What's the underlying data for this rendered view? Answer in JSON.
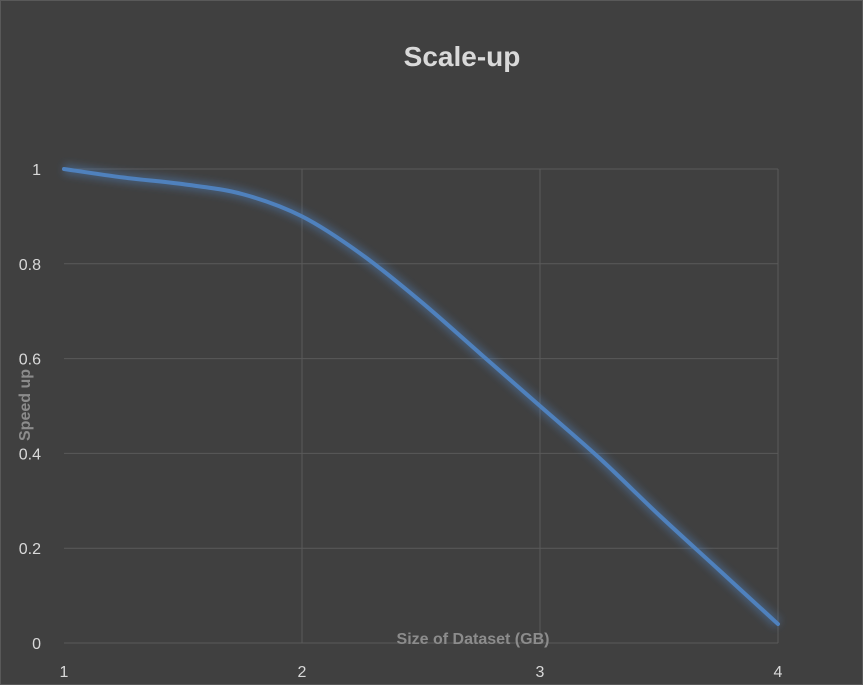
{
  "chart_data": {
    "type": "line",
    "title": "Scale-up",
    "xlabel": "Size of Dataset (GB)",
    "ylabel": "Speed up",
    "x": [
      1,
      1.25,
      1.5,
      1.75,
      2,
      2.25,
      2.5,
      2.75,
      3,
      3.25,
      3.5,
      3.75,
      4
    ],
    "series": [
      {
        "values": [
          1.0,
          0.982,
          0.968,
          0.947,
          0.9,
          0.82,
          0.72,
          0.61,
          0.5,
          0.39,
          0.27,
          0.155,
          0.04
        ]
      }
    ],
    "xlim": [
      1,
      4
    ],
    "ylim": [
      0,
      1
    ],
    "xticks": [
      1,
      2,
      3,
      4
    ],
    "yticks": [
      0,
      0.2,
      0.4,
      0.6,
      0.8,
      1
    ],
    "grid": true,
    "legend": "none",
    "colors": {
      "background": "#404040",
      "line": "#4f81bd",
      "text": "#d9d9d9",
      "axis_title": "#8c8c8c",
      "grid": "#5a5a5a"
    }
  }
}
